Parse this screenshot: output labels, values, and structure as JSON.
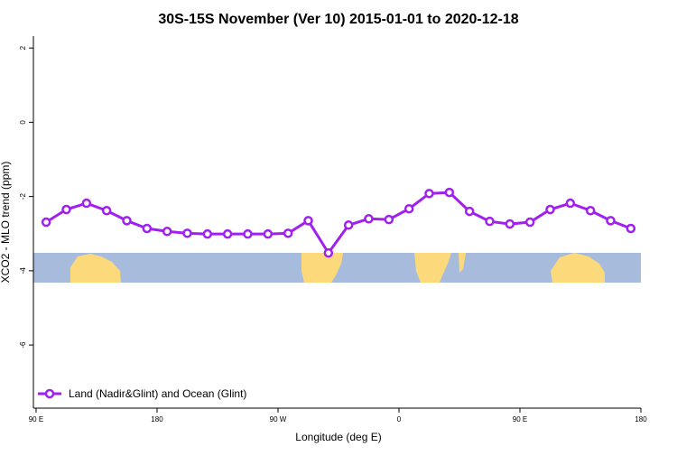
{
  "chart_data": {
    "type": "line",
    "title": "30S-15S November (Ver 10)   2015-01-01 to 2020-12-18",
    "xlabel": "Longitude (deg E)",
    "ylabel": "XCO2 - MLO trend (ppm)",
    "x": [
      97.5,
      112.5,
      127.5,
      142.5,
      157.5,
      172.5,
      187.5,
      202.5,
      217.5,
      232.5,
      247.5,
      262.5,
      277.5,
      292.5,
      307.5,
      322.5,
      337.5,
      352.5,
      367.5,
      382.5,
      397.5,
      412.5,
      427.5,
      442.5,
      457.5,
      472.5,
      487.5,
      502.5,
      517.5,
      532.5
    ],
    "series": [
      {
        "name": "Land (Nadir&Glint) and Ocean (Glint)",
        "color": "#a020f0",
        "values": [
          -2.69,
          -2.35,
          -2.18,
          -2.38,
          -2.65,
          -2.86,
          -2.94,
          -2.99,
          -3.01,
          -3.01,
          -3.01,
          -3.01,
          -2.99,
          -2.65,
          -3.52,
          -2.77,
          -2.6,
          -2.62,
          -2.33,
          -1.92,
          -1.89,
          -2.4,
          -2.67,
          -2.74,
          -2.69,
          -2.35,
          -2.18,
          -2.38,
          -2.65,
          -2.86
        ]
      }
    ],
    "xlim": [
      88,
      540
    ],
    "xticks": [
      {
        "value": 90,
        "label": "90 E"
      },
      180,
      {
        "value": 270,
        "label": "90 W"
      },
      {
        "value": 360,
        "label": "0"
      },
      {
        "value": 450,
        "label": "90 E"
      },
      {
        "value": 540,
        "label": "180"
      }
    ],
    "ylim": [
      -7.7,
      2.32
    ],
    "yticks": [
      2,
      0,
      -2,
      -4,
      -6
    ],
    "legend": "bottom-left"
  }
}
